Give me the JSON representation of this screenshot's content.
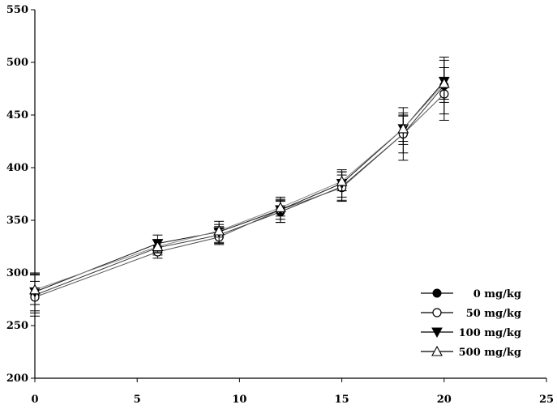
{
  "chart_data": {
    "type": "line",
    "title": "",
    "xlabel": "",
    "ylabel": "",
    "xlim": [
      0,
      25
    ],
    "ylim": [
      200,
      550
    ],
    "x_ticks": [
      0,
      5,
      10,
      15,
      20,
      25
    ],
    "y_ticks": [
      200,
      250,
      300,
      350,
      400,
      450,
      500,
      550
    ],
    "grid": false,
    "legend_position": "bottom-right",
    "x": [
      0,
      6,
      9,
      12,
      15,
      18,
      20
    ],
    "series": [
      {
        "name": "0 mg/kg",
        "marker": "filled-circle",
        "color": "#333333",
        "values": [
          279,
          324,
          336,
          358,
          382,
          432,
          478
        ],
        "errors": [
          20,
          7,
          8,
          10,
          14,
          25,
          27
        ]
      },
      {
        "name": "50 mg/kg",
        "marker": "open-circle",
        "color": "#555555",
        "values": [
          277,
          320,
          334,
          360,
          381,
          432,
          470
        ],
        "errors": [
          15,
          6,
          7,
          9,
          12,
          18,
          25
        ]
      },
      {
        "name": "100 mg/kg",
        "marker": "filled-triangle-down",
        "color": "#111111",
        "values": [
          282,
          328,
          339,
          360,
          385,
          437,
          482
        ],
        "errors": [
          18,
          8,
          10,
          12,
          13,
          15,
          20
        ]
      },
      {
        "name": "500 mg/kg",
        "marker": "open-triangle-up",
        "color": "#888888",
        "values": [
          284,
          325,
          340,
          362,
          387,
          437,
          480
        ],
        "errors": [
          14,
          6,
          6,
          8,
          9,
          12,
          15
        ]
      }
    ]
  }
}
